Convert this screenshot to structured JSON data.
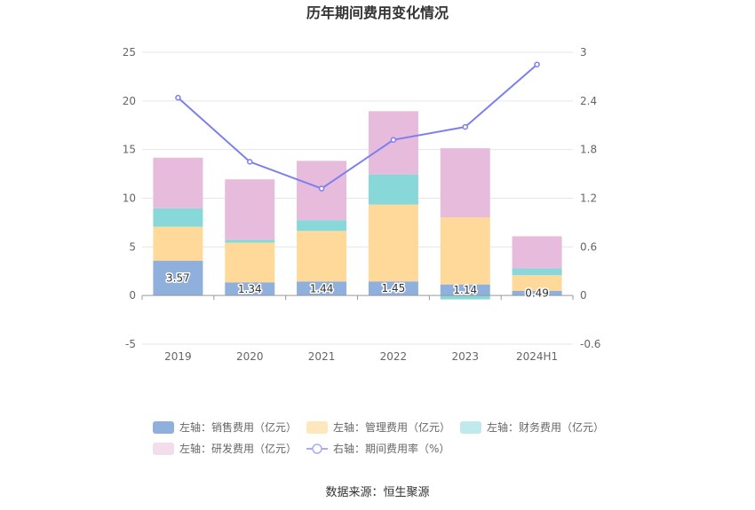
{
  "chart_data": {
    "type": "bar",
    "title": "历年期间费用变化情况",
    "categories": [
      "2019",
      "2020",
      "2021",
      "2022",
      "2023",
      "2024H1"
    ],
    "left_axis": {
      "min": -5,
      "max": 25,
      "ticks": [
        -5,
        0,
        5,
        10,
        15,
        20,
        25
      ],
      "unit": "亿元"
    },
    "right_axis": {
      "min": -0.6,
      "max": 3,
      "ticks": [
        "-0.6",
        "0",
        "0.6",
        "1.2",
        "1.8",
        "2.4",
        "3"
      ],
      "unit": "%"
    },
    "series": [
      {
        "name": "左轴：销售费用（亿元）",
        "type": "bar",
        "color": "#8fb0dc",
        "values": [
          3.57,
          1.34,
          1.44,
          1.45,
          1.14,
          0.49
        ],
        "labels": [
          "3.57",
          "1.34",
          "1.44",
          "1.45",
          "1.14",
          "0.49"
        ]
      },
      {
        "name": "左轴：管理费用（亿元）",
        "type": "bar",
        "color": "#ffd99a",
        "values": [
          3.5,
          4.1,
          5.2,
          7.9,
          6.9,
          1.6
        ]
      },
      {
        "name": "左轴：财务费用（亿元）",
        "type": "bar",
        "color": "#88d8d9",
        "values": [
          1.9,
          0.3,
          1.1,
          3.1,
          -0.4,
          0.7
        ]
      },
      {
        "name": "左轴：研发费用（亿元）",
        "type": "bar",
        "color": "#e6bbdb",
        "values": [
          5.2,
          6.2,
          6.1,
          6.5,
          7.1,
          3.3
        ]
      },
      {
        "name": "右轴：期间费用率（%）",
        "type": "line",
        "color": "#7b7ff0",
        "values": [
          2.44,
          1.65,
          1.32,
          1.92,
          2.08,
          2.85
        ]
      }
    ],
    "legend": [
      {
        "name": "左轴：销售费用（亿元）",
        "color": "#8fb0dc",
        "kind": "box"
      },
      {
        "name": "左轴：管理费用（亿元）",
        "color": "#ffe7bd",
        "kind": "box"
      },
      {
        "name": "左轴：财务费用（亿元）",
        "color": "#bfe9ea",
        "kind": "box"
      },
      {
        "name": "左轴：研发费用（亿元）",
        "color": "#f3dcec",
        "kind": "box"
      },
      {
        "name": "右轴：期间费用率（%）",
        "color": "#a9abf5",
        "kind": "line"
      }
    ],
    "source": "数据来源：恒生聚源"
  }
}
